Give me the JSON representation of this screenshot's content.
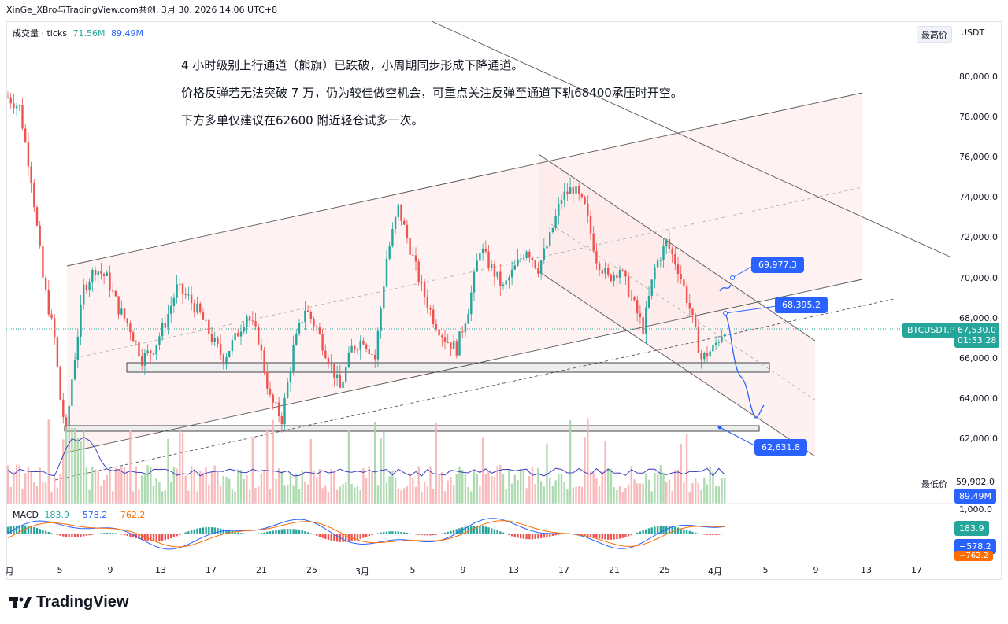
{
  "header": "XinGe_XBro与TradingView.com共创, 3月 30, 2026 14:06 UTC+8",
  "volume_legend": {
    "name": "成交量 · ticks",
    "v1": "71.56M",
    "v2": "89.49M"
  },
  "scale_buttons": [
    "最高价",
    "USDT"
  ],
  "notes": [
    "4 小时级别上行通道（熊旗）已跌破，小周期同步形成下降通道。",
    "价格反弹若无法突破 7 万，仍为较佳做空机会，可重点关注反弹至通道下轨68400承压时开空。",
    "下方多单仅建议在62600 附近轻仓试多一次。"
  ],
  "y_ticks": [
    "80,000.0",
    "78,000.0",
    "76,000.0",
    "74,000.0",
    "72,000.0",
    "70,000.0",
    "68,000.0",
    "66,000.0",
    "64,000.0",
    "62,000.0"
  ],
  "x_ticks": [
    "月",
    "5",
    "9",
    "13",
    "17",
    "21",
    "25",
    "3月",
    "5",
    "9",
    "13",
    "17",
    "21",
    "25",
    "4月",
    "5",
    "9",
    "13",
    "17"
  ],
  "price_tag": {
    "symbol": "BTCUSDT.P",
    "price": "67,530.0",
    "countdown": "01:53:28",
    "color": "#26a69a"
  },
  "callouts": [
    "69,977.3",
    "68,395.2",
    "62,631.8"
  ],
  "lowest_label": "最低价",
  "lowest_value": "59,902.0",
  "volume_tag": "89.49M",
  "macd": {
    "name": "MACD",
    "v1": "183.9",
    "v2": "−578.2",
    "v3": "−762.2",
    "axis": [
      "1,000.0",
      "0"
    ],
    "colors": {
      "hist_up": "#26a69a",
      "hist_down": "#ef5350",
      "macd": "#2962ff",
      "signal": "#ff6d00"
    }
  },
  "brand": "TradingView",
  "chart_data": {
    "type": "candlestick",
    "title": "",
    "ylim": [
      59902,
      80500
    ],
    "y_axis": "USDT",
    "x_range": [
      "月",
      "4月 17"
    ],
    "levels": {
      "support_zone_1": [
        65400,
        65800
      ],
      "support_zone_2": [
        62400,
        62631.8
      ],
      "annotated": [
        69977.3,
        68395.2,
        62631.8
      ],
      "last_price": 67530.0
    },
    "close_path": [
      [
        0,
        79000
      ],
      [
        4,
        78500
      ],
      [
        8,
        75000
      ],
      [
        12,
        70000
      ],
      [
        16,
        67000
      ],
      [
        18,
        64000
      ],
      [
        20,
        62300
      ],
      [
        22,
        65000
      ],
      [
        26,
        69500
      ],
      [
        30,
        70500
      ],
      [
        34,
        70000
      ],
      [
        38,
        68500
      ],
      [
        42,
        67500
      ],
      [
        46,
        66000
      ],
      [
        50,
        66500
      ],
      [
        54,
        67800
      ],
      [
        58,
        69500
      ],
      [
        62,
        69000
      ],
      [
        66,
        68200
      ],
      [
        70,
        67000
      ],
      [
        74,
        66000
      ],
      [
        78,
        67000
      ],
      [
        82,
        68200
      ],
      [
        86,
        67000
      ],
      [
        90,
        64000
      ],
      [
        94,
        63000
      ],
      [
        98,
        66500
      ],
      [
        102,
        68500
      ],
      [
        106,
        67500
      ],
      [
        110,
        66000
      ],
      [
        114,
        64500
      ],
      [
        118,
        66500
      ],
      [
        122,
        67000
      ],
      [
        126,
        66000
      ],
      [
        130,
        71000
      ],
      [
        134,
        73500
      ],
      [
        138,
        71500
      ],
      [
        142,
        69500
      ],
      [
        146,
        68000
      ],
      [
        150,
        67000
      ],
      [
        154,
        66500
      ],
      [
        158,
        68500
      ],
      [
        162,
        71500
      ],
      [
        166,
        70500
      ],
      [
        170,
        69500
      ],
      [
        174,
        70500
      ],
      [
        178,
        71500
      ],
      [
        182,
        70500
      ],
      [
        186,
        72000
      ],
      [
        190,
        74000
      ],
      [
        194,
        74500
      ],
      [
        198,
        73500
      ],
      [
        202,
        71000
      ],
      [
        206,
        70000
      ],
      [
        210,
        70500
      ],
      [
        214,
        69000
      ],
      [
        218,
        67500
      ],
      [
        222,
        70500
      ],
      [
        226,
        71800
      ],
      [
        230,
        70500
      ],
      [
        234,
        68500
      ],
      [
        238,
        66000
      ],
      [
        242,
        66500
      ],
      [
        246,
        67530
      ]
    ],
    "forecast_path": [
      [
        246,
        68395.2
      ],
      [
        250,
        66800
      ],
      [
        254,
        64500
      ],
      [
        258,
        63200
      ]
    ]
  }
}
